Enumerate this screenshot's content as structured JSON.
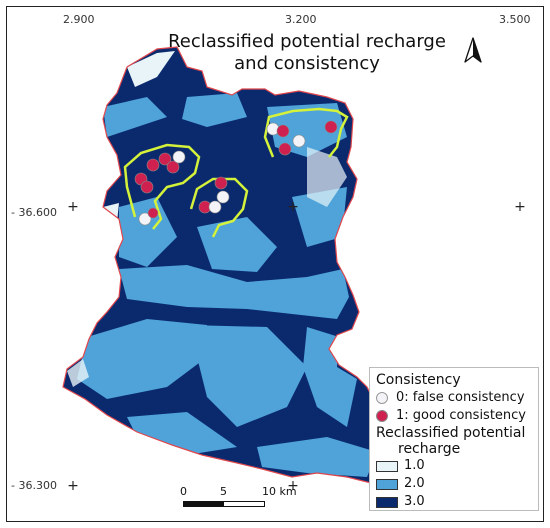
{
  "map": {
    "title_line1": "Reclassified potential recharge",
    "title_line2": "and consistency",
    "colors": {
      "class_1": "#e8f4f8",
      "class_2": "#4fa3d9",
      "class_3": "#0b2a6e",
      "boundary": "#e0474c",
      "zone_line": "#d4f23a",
      "good": "#cf2150",
      "false": "#f4f4f8"
    }
  },
  "graticule": {
    "top_labels": [
      "2.900",
      "3.200",
      "3.500"
    ],
    "left_labels": [
      "36.600",
      "36.300"
    ]
  },
  "legend": {
    "consistency_heading": "Consistency",
    "false_label": "0: false consistency",
    "good_label": "1: good consistency",
    "recharge_heading_line1": "Reclassified potential",
    "recharge_heading_line2": "recharge",
    "classes": [
      {
        "label": "1.0",
        "color": "#e8f4f8"
      },
      {
        "label": "2.0",
        "color": "#4fa3d9"
      },
      {
        "label": "3.0",
        "color": "#0b2a6e"
      }
    ]
  },
  "scale": {
    "label_0": "0",
    "label_5": "5",
    "label_10": "10 km"
  },
  "icons": {
    "north_arrow": "north-arrow-icon"
  }
}
